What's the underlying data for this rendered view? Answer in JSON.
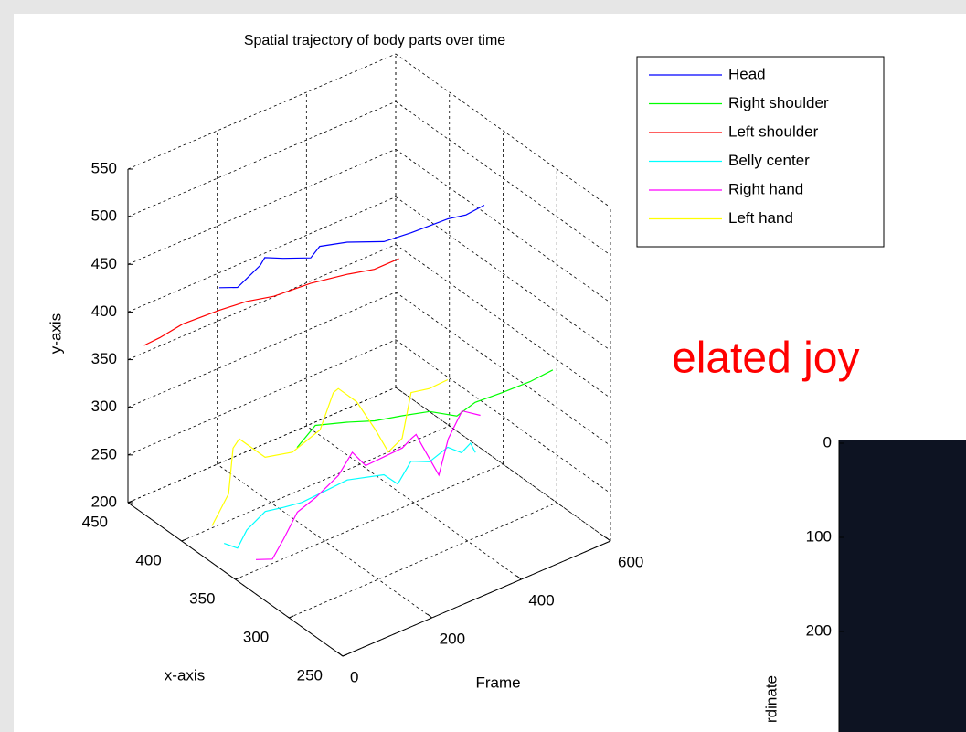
{
  "chart_data": {
    "type": "line3d",
    "title": "Spatial trajectory of body parts over time",
    "xlabel": "x-axis",
    "ylabel": "y-axis",
    "frame_label": "Frame",
    "xlim": [
      250,
      450
    ],
    "xticks": [
      250,
      300,
      350,
      400,
      450
    ],
    "ylim": [
      200,
      550
    ],
    "yticks": [
      200,
      250,
      300,
      350,
      400,
      450,
      500,
      550
    ],
    "framelim": [
      0,
      600
    ],
    "frameticks": [
      0,
      200,
      400,
      600
    ],
    "grid": true,
    "legend": "top-right",
    "series": [
      {
        "name": "Head",
        "color": "#0000ff",
        "frame": [
          0,
          41,
          61,
          92,
          102,
          143,
          205,
          225,
          287,
          369,
          430,
          512,
          553,
          594
        ],
        "x": [
          365,
          365,
          365,
          365,
          365,
          365,
          365,
          365,
          365,
          365,
          365,
          365,
          365,
          365
        ],
        "values": [
          494,
          486,
          491,
          499,
          505,
          496,
          484,
          492,
          484,
          468,
          465,
          463,
          459,
          461
        ]
      },
      {
        "name": "Right shoulder",
        "color": "#00ff00",
        "frame": [
          18,
          59,
          130,
          192,
          253,
          315,
          376,
          417,
          478,
          540,
          591
        ],
        "x": [
          300,
          300,
          300,
          300,
          300,
          300,
          300,
          300,
          300,
          300,
          300
        ],
        "values": [
          375,
          390,
          379,
          368,
          361,
          353,
          336,
          342,
          340,
          339,
          341
        ]
      },
      {
        "name": "Left shoulder",
        "color": "#ff0000",
        "frame": [
          0,
          35,
          86,
          168,
          229,
          291,
          373,
          455,
          516,
          571
        ],
        "x": [
          435,
          435,
          435,
          435,
          435,
          435,
          435,
          435,
          435,
          435
        ],
        "values": [
          377,
          378,
          382,
          380,
          377,
          370,
          367,
          360,
          353,
          353
        ]
      },
      {
        "name": "Belly center",
        "color": "#00ffff",
        "frame": [
          23,
          53,
          74,
          115,
          156,
          197,
          238,
          299,
          381,
          412,
          442,
          483,
          524,
          555,
          575,
          586
        ],
        "x": [
          370,
          370,
          370,
          370,
          370,
          370,
          370,
          370,
          370,
          370,
          370,
          370,
          370,
          370,
          370,
          370
        ],
        "values": [
          217,
          206,
          221,
          232,
          228,
          225,
          226,
          228,
          217,
          201,
          219,
          210,
          217,
          205,
          211,
          199
        ]
      },
      {
        "name": "Right hand",
        "color": "#ff00ff",
        "frame": [
          34,
          71,
          96,
          127,
          168,
          219,
          250,
          280,
          321,
          362,
          383,
          393,
          403,
          444,
          465,
          496,
          537
        ],
        "x": [
          345,
          345,
          345,
          345,
          345,
          345,
          345,
          345,
          345,
          345,
          345,
          345,
          345,
          345,
          345,
          345,
          345
        ],
        "values": [
          218,
          211,
          227,
          249,
          256,
          269,
          287,
          267,
          268,
          269,
          275,
          277,
          266,
          224,
          258,
          281,
          268
        ]
      },
      {
        "name": "Left hand",
        "color": "#ffff00",
        "frame": [
          20,
          57,
          67,
          81,
          139,
          200,
          262,
          292,
          303,
          344,
          385,
          415,
          446,
          466,
          507,
          548
        ],
        "x": [
          380,
          380,
          380,
          380,
          380,
          380,
          380,
          380,
          380,
          380,
          380,
          380,
          380,
          380,
          380,
          380
        ],
        "values": [
          228,
          254,
          300,
          307,
          276,
          269,
          280,
          313,
          315,
          293,
          256,
          226,
          234,
          278,
          274,
          275
        ]
      }
    ]
  },
  "annotation": "elated joy",
  "image_panel": {
    "ylabel": "rdinate",
    "yticks": [
      0,
      100,
      200
    ]
  }
}
